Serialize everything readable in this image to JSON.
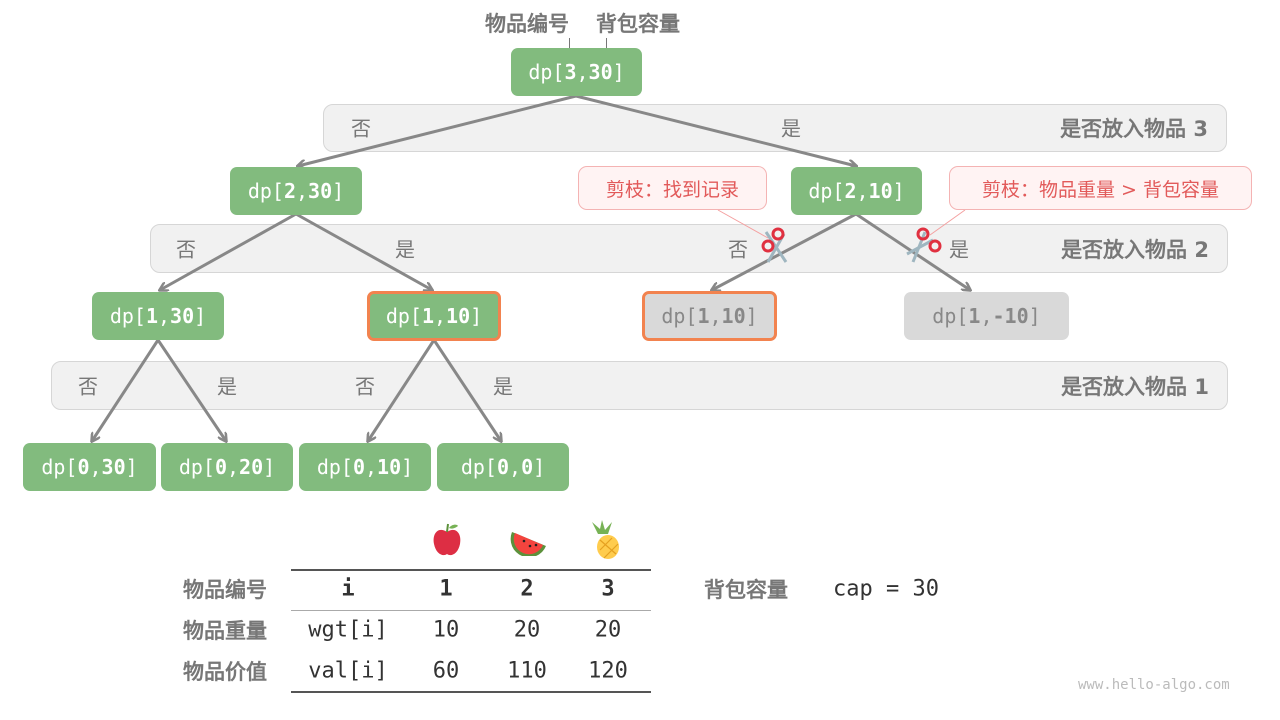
{
  "header": {
    "item_label": "物品编号",
    "capacity_label": "背包容量"
  },
  "bands": [
    {
      "title": "是否放入物品 3",
      "labels": [
        "否",
        "是"
      ]
    },
    {
      "title": "是否放入物品 2",
      "labels": [
        "否",
        "是",
        "否",
        "是"
      ]
    },
    {
      "title": "是否放入物品 1",
      "labels": [
        "否",
        "是",
        "否",
        "是"
      ]
    }
  ],
  "nodes": {
    "root": {
      "pre": "dp[",
      "i": "3",
      "sep": ",",
      "c": "30",
      "post": "]"
    },
    "n230": {
      "pre": "dp[",
      "i": "2",
      "sep": ",",
      "c": "30",
      "post": "]"
    },
    "n210": {
      "pre": "dp[",
      "i": "2",
      "sep": ",",
      "c": "10",
      "post": "]"
    },
    "n130": {
      "pre": "dp[",
      "i": "1",
      "sep": ",",
      "c": "30",
      "post": "]"
    },
    "n110a": {
      "pre": "dp[",
      "i": "1",
      "sep": ",",
      "c": "10",
      "post": "]"
    },
    "n110b": {
      "pre": "dp[",
      "i": "1",
      "sep": ",",
      "c": "10",
      "post": "]"
    },
    "n1m10": {
      "pre": "dp[",
      "i": "1",
      "sep": ",",
      "c": "-10",
      "post": "]"
    },
    "n030": {
      "pre": "dp[",
      "i": "0",
      "sep": ",",
      "c": "30",
      "post": "]"
    },
    "n020": {
      "pre": "dp[",
      "i": "0",
      "sep": ",",
      "c": "20",
      "post": "]"
    },
    "n010": {
      "pre": "dp[",
      "i": "0",
      "sep": ",",
      "c": "10",
      "post": "]"
    },
    "n00": {
      "pre": "dp[",
      "i": "0",
      "sep": ",",
      "c": "0",
      "post": "]"
    }
  },
  "callouts": {
    "found": "剪枝：找到记录",
    "overweight": "剪枝：物品重量 > 背包容量"
  },
  "icons": {
    "prune": "scissors-icon",
    "fruits": [
      "apple-icon",
      "watermelon-icon",
      "pineapple-icon"
    ]
  },
  "table": {
    "header": {
      "label": "物品编号",
      "key": "i",
      "cols": [
        "1",
        "2",
        "3"
      ]
    },
    "rows": [
      {
        "label": "物品重量",
        "key": "wgt[i]",
        "vals": [
          "10",
          "20",
          "20"
        ]
      },
      {
        "label": "物品价值",
        "key": "val[i]",
        "vals": [
          "60",
          "110",
          "120"
        ]
      }
    ],
    "capacity_label": "背包容量",
    "capacity_value": "cap = 30"
  },
  "colors": {
    "node": "#82bb7e",
    "pruned": "#d9d9d9",
    "highlight": "#f2834f",
    "callout_text": "#e25a5a"
  },
  "watermark": "www.hello-algo.com"
}
